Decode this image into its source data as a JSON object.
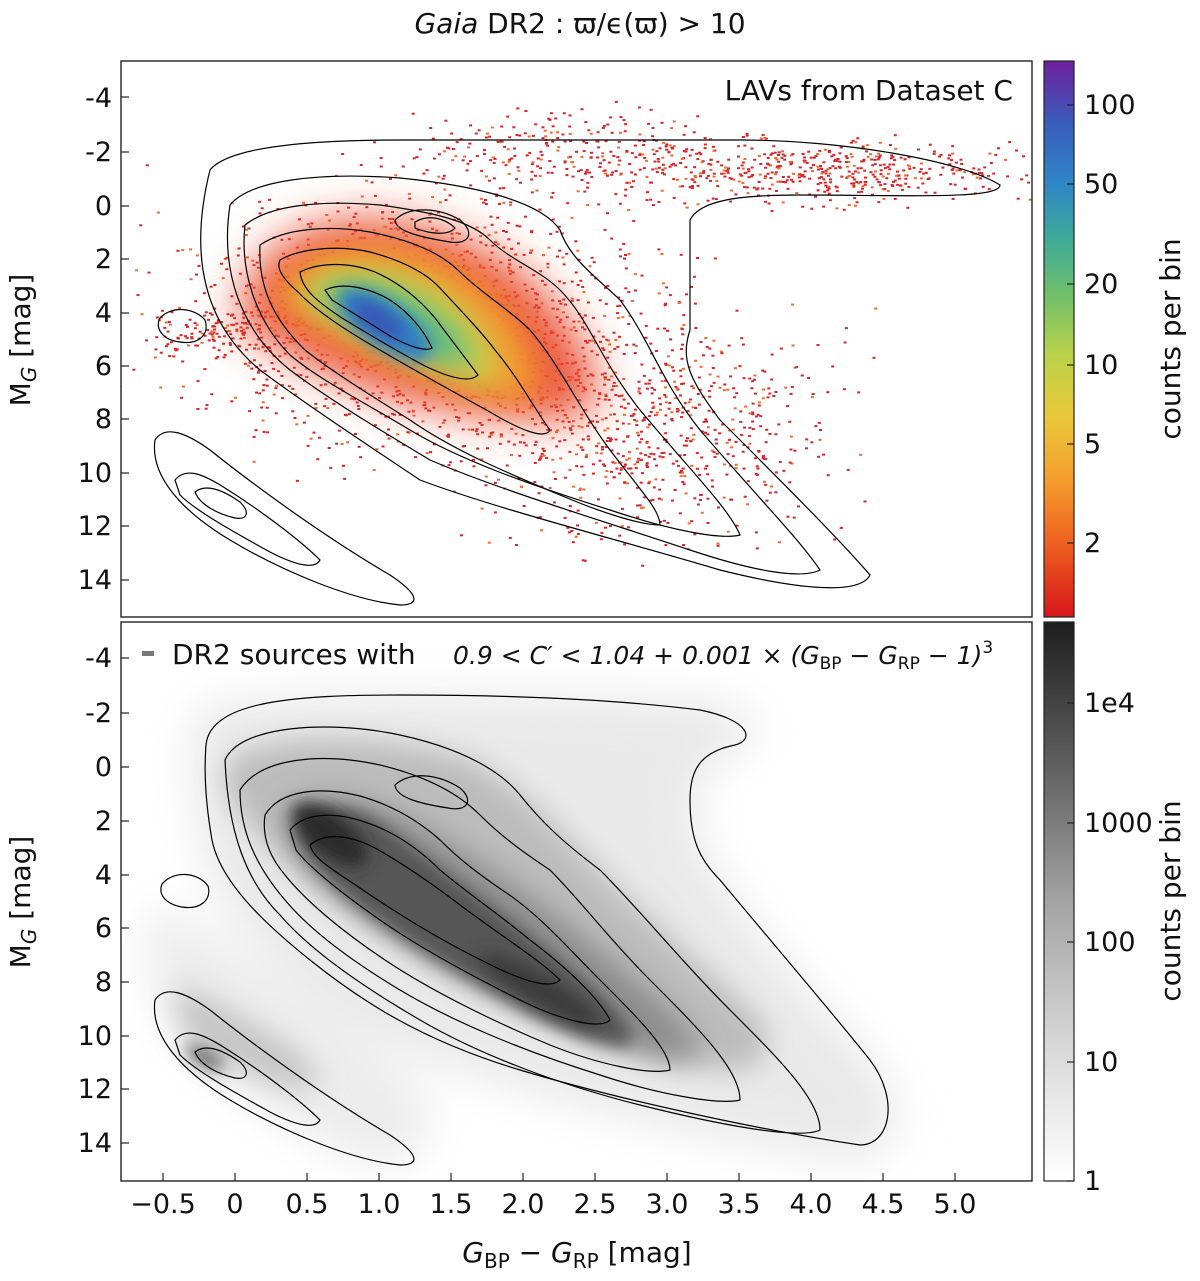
{
  "figure_title": {
    "italic": "Gaia",
    "rest": " DR2 : ϖ/ϵ(ϖ) > 10"
  },
  "chart_data": [
    {
      "type": "heatmap",
      "title": "",
      "annotation": "LAVs from Dataset C",
      "xlabel": "",
      "ylabel": "M_G [mag]",
      "ylabel_main": "M",
      "ylabel_sub": "G",
      "ylabel_unit": " [mag]",
      "xlim": [
        -0.8,
        5.55
      ],
      "ylim": [
        15.5,
        -5.3
      ],
      "y_inverted": true,
      "yticks": [
        -4,
        -2,
        0,
        2,
        4,
        6,
        8,
        10,
        12,
        14
      ],
      "colorbar": {
        "label": "counts per bin",
        "scale": "log",
        "range": [
          1,
          150
        ],
        "ticks": [
          2,
          5,
          10,
          20,
          50,
          100
        ],
        "colormap": "spectral (red → orange → yellow → green → blue → purple)"
      },
      "density_peak": {
        "x": 1.1,
        "y": 4.5
      },
      "contours": "black density contours of the full DR2 sample",
      "grid": false
    },
    {
      "type": "heatmap",
      "title": "",
      "annotation_prefix": "DR2 sources with",
      "annotation_formula": "0.9 < C′ < 1.04 + 0.001 × (G_BP − G_RP − 1)³",
      "annotation_math": {
        "lhs": "0.9 < C′ < 1.04 + 0.001 × (",
        "g": "G",
        "bp": "BP",
        "minus": " − ",
        "rp": "RP",
        "tail": " − 1)",
        "exp": "3"
      },
      "xlabel": "G_BP − G_RP [mag]",
      "xlabel_parts": {
        "g1": "G",
        "s1": "BP",
        "mid": " − ",
        "g2": "G",
        "s2": "RP",
        "unit": "  [mag]"
      },
      "ylabel": "M_G [mag]",
      "ylabel_main": "M",
      "ylabel_sub": "G",
      "ylabel_unit": " [mag]",
      "xlim": [
        -0.8,
        5.55
      ],
      "ylim": [
        15.5,
        -5.3
      ],
      "y_inverted": true,
      "xticks": [
        -0.5,
        0,
        0.5,
        1.0,
        1.5,
        2.0,
        2.5,
        3.0,
        3.5,
        4.0,
        4.5,
        5.0
      ],
      "xtick_labels": [
        "−0.5",
        "0",
        "0.5",
        "1.0",
        "1.5",
        "2.0",
        "2.5",
        "3.0",
        "3.5",
        "4.0",
        "4.5",
        "5.0"
      ],
      "yticks": [
        -4,
        -2,
        0,
        2,
        4,
        6,
        8,
        10,
        12,
        14
      ],
      "colorbar": {
        "label": "counts per bin",
        "scale": "log",
        "range": [
          1,
          50000
        ],
        "ticks": [
          1,
          10,
          100,
          1000,
          10000
        ],
        "tick_labels": [
          "1",
          "10",
          "100",
          "1000",
          "1e4"
        ],
        "colormap": "greys"
      },
      "contours": "black density contours",
      "grid": false
    }
  ]
}
